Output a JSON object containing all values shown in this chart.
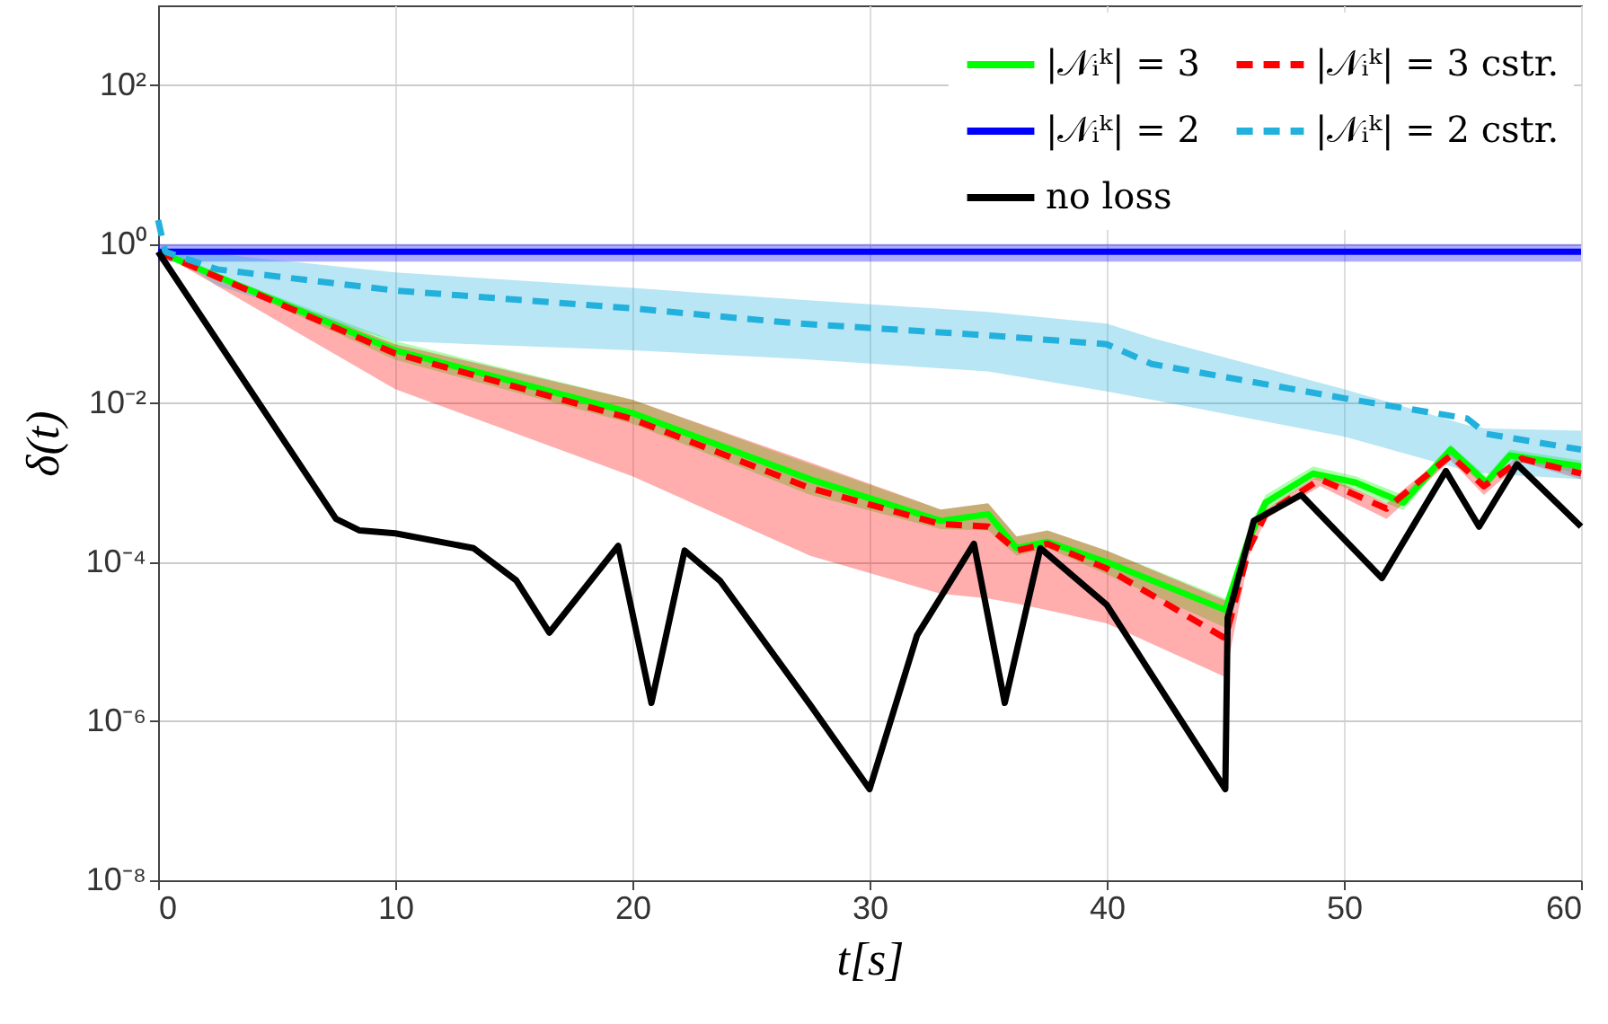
{
  "chart_data": {
    "type": "line",
    "xlabel": "t[s]",
    "ylabel": "δ(t)",
    "log": "y",
    "grid": true,
    "legend": "top right",
    "xlim": [
      0,
      60
    ],
    "xticks": [
      0,
      10,
      20,
      30,
      40,
      50,
      60
    ],
    "ylim": [
      1e-08,
      1000
    ],
    "yticks": [
      {
        "value": 1e-08,
        "label": "10⁻⁸"
      },
      {
        "value": 1e-06,
        "label": "10⁻⁶"
      },
      {
        "value": 0.0001,
        "label": "10⁻⁴"
      },
      {
        "value": 0.01,
        "label": "10⁻²"
      },
      {
        "value": 1,
        "label": "10⁰"
      },
      {
        "value": 100,
        "label": "10²"
      }
    ],
    "series": [
      {
        "name": "|𝒩ᵢᵏ| = 3",
        "color": "#00ff00",
        "line_style": "solid",
        "x": [
          0,
          10,
          20,
          27.5,
          33,
          35,
          36.2,
          37.5,
          40,
          45,
          46,
          46.7,
          48.7,
          50.5,
          52.5,
          54.5,
          56,
          57,
          60
        ],
        "values": [
          0.8,
          0.046,
          0.0075,
          0.0011,
          0.00033,
          0.0004,
          0.00015,
          0.00018,
          0.0001,
          2.5e-05,
          0.0002,
          0.00056,
          0.0013,
          0.001,
          0.00056,
          0.0026,
          0.001,
          0.0022,
          0.0016
        ],
        "lower": [
          0.8,
          0.035,
          0.0055,
          0.0007,
          0.00026,
          0.00025,
          0.00012,
          0.00015,
          7e-05,
          1.5e-05,
          0.00015,
          0.00045,
          0.0011,
          0.0008,
          0.00045,
          0.0022,
          0.00085,
          0.0019,
          0.0013
        ],
        "upper": [
          0.8,
          0.06,
          0.011,
          0.0017,
          0.00046,
          0.00055,
          0.00021,
          0.00025,
          0.00014,
          3.5e-05,
          0.00028,
          0.0007,
          0.0016,
          0.0012,
          0.0007,
          0.003,
          0.0012,
          0.0026,
          0.0019
        ]
      },
      {
        "name": "|𝒩ᵢᵏ| = 3 cstr.",
        "color": "#ff0000",
        "line_style": "dashed",
        "x": [
          0,
          10,
          20,
          27.5,
          33,
          35,
          36.2,
          37.5,
          40,
          45,
          46,
          46.7,
          49,
          51.8,
          54.5,
          55.9,
          57.5,
          60
        ],
        "values": [
          0.8,
          0.042,
          0.0063,
          0.00085,
          0.0003,
          0.00028,
          0.00014,
          0.00017,
          8.3e-05,
          1.1e-05,
          0.00015,
          0.0004,
          0.0011,
          0.00047,
          0.0022,
          0.0009,
          0.002,
          0.0013
        ],
        "lower": [
          0.8,
          0.015,
          0.0012,
          0.00012,
          4e-05,
          3.5e-05,
          3e-05,
          2.5e-05,
          1.7e-05,
          3.6e-06,
          0.00012,
          0.00035,
          0.0009,
          0.00035,
          0.0019,
          0.0007,
          0.0018,
          0.0011
        ],
        "upper": [
          0.8,
          0.055,
          0.011,
          0.0018,
          0.00046,
          0.00055,
          0.00021,
          0.00025,
          0.00014,
          3.3e-05,
          0.00017,
          0.00046,
          0.0013,
          0.00055,
          0.0025,
          0.001,
          0.0023,
          0.0015
        ]
      },
      {
        "name": "|𝒩ᵢᵏ| = 2",
        "color": "#0000ff",
        "line_style": "solid",
        "x": [
          0,
          60
        ],
        "values": [
          0.8,
          0.8
        ],
        "lower": [
          0.6,
          0.6
        ],
        "upper": [
          1,
          1
        ]
      },
      {
        "name": "|𝒩ᵢᵏ| = 2 cstr.",
        "color": "#22b0dc",
        "line_style": "dashed",
        "x": [
          0,
          0.3,
          2.5,
          10,
          20,
          27,
          35,
          40,
          41.9,
          50,
          55.2,
          56,
          60
        ],
        "values": [
          2,
          0.8,
          0.48,
          0.26,
          0.155,
          0.1,
          0.071,
          0.055,
          0.031,
          0.0115,
          0.0064,
          0.0041,
          0.0026
        ],
        "lower": [
          2,
          0.8,
          0.3,
          0.06,
          0.046,
          0.036,
          0.025,
          0.014,
          0.011,
          0.0038,
          0.0014,
          0.0013,
          0.0011
        ],
        "upper": [
          2,
          0.8,
          0.75,
          0.44,
          0.28,
          0.2,
          0.14,
          0.1,
          0.066,
          0.015,
          0.0053,
          0.0048,
          0.0045
        ]
      },
      {
        "name": "no loss",
        "color": "#000000",
        "line_style": "solid",
        "x": [
          0,
          7.5,
          8.5,
          10,
          13.3,
          15.1,
          16.5,
          19.4,
          20.8,
          22.2,
          23.7,
          27.5,
          30,
          32,
          34.4,
          35.7,
          37.2,
          40,
          45,
          45.1,
          46.2,
          48.2,
          51.6,
          54.3,
          55.7,
          57.3,
          60
        ],
        "values": [
          0.8,
          0.00035,
          0.00025,
          0.00023,
          0.00015,
          5.9e-05,
          1.3e-05,
          0.00016,
          1.7e-06,
          0.00014,
          5.8e-05,
          1.6e-06,
          1.4e-07,
          1.2e-05,
          0.00017,
          1.7e-06,
          0.00015,
          2.9e-05,
          1.4e-07,
          2e-05,
          0.00033,
          0.0007,
          6.3e-05,
          0.0014,
          0.00028,
          0.0017,
          0.00028
        ]
      }
    ]
  }
}
